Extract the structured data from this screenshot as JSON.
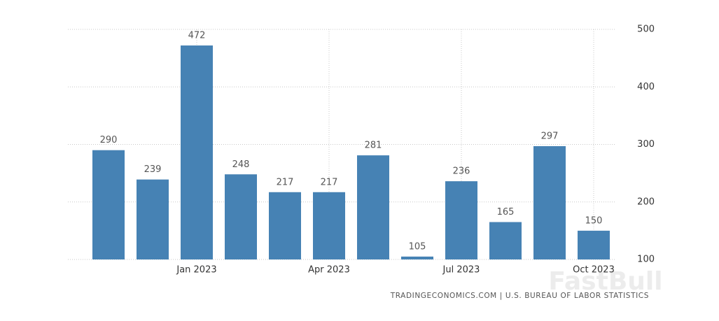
{
  "chart_data": {
    "type": "bar",
    "categories": [
      null,
      null,
      "Jan 2023",
      null,
      null,
      "Apr 2023",
      null,
      null,
      "Jul 2023",
      null,
      null,
      "Oct 2023"
    ],
    "values": [
      290,
      239,
      472,
      248,
      217,
      217,
      281,
      105,
      236,
      165,
      297,
      150
    ],
    "color": "#4682b4",
    "ylim": [
      100,
      500
    ],
    "yticks": [
      100,
      200,
      300,
      400,
      500
    ],
    "grid": true,
    "y_axis_side": "right",
    "source": "TRADINGECONOMICS.COM | U.S. BUREAU OF LABOR STATISTICS",
    "watermark": "FastBull"
  }
}
